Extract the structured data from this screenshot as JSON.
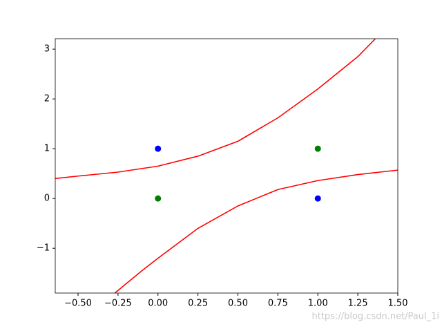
{
  "chart_data": {
    "type": "line",
    "xlim": [
      -0.6425,
      1.5
    ],
    "ylim": [
      -1.9,
      3.21
    ],
    "xticks": [
      {
        "value": -0.5,
        "label": "−0.50"
      },
      {
        "value": -0.25,
        "label": "−0.25"
      },
      {
        "value": 0,
        "label": "0.00"
      },
      {
        "value": 0.25,
        "label": "0.25"
      },
      {
        "value": 0.5,
        "label": "0.50"
      },
      {
        "value": 0.75,
        "label": "0.75"
      },
      {
        "value": 1,
        "label": "1.00"
      },
      {
        "value": 1.25,
        "label": "1.25"
      },
      {
        "value": 1.5,
        "label": "1.50"
      }
    ],
    "yticks": [
      {
        "value": -1,
        "label": "−1"
      },
      0,
      1,
      2,
      3
    ],
    "lines": [
      {
        "color": "#ff0000",
        "x": [
          -0.6425,
          -0.5,
          -0.25,
          0,
          0.25,
          0.5,
          0.75,
          1.0,
          1.25,
          1.36
        ],
        "values": [
          0.4,
          0.45,
          0.53,
          0.65,
          0.85,
          1.15,
          1.62,
          2.2,
          2.85,
          3.21
        ]
      },
      {
        "color": "#ff0000",
        "x": [
          -0.27,
          -0.1,
          0,
          0.25,
          0.5,
          0.75,
          1.0,
          1.25,
          1.5
        ],
        "values": [
          -1.9,
          -1.45,
          -1.2,
          -0.6,
          -0.15,
          0.18,
          0.36,
          0.48,
          0.57
        ]
      }
    ],
    "points": [
      {
        "color": "#0000ff",
        "x": [
          0,
          1
        ],
        "values": [
          1,
          0
        ]
      },
      {
        "color": "#008000",
        "x": [
          0,
          1
        ],
        "values": [
          0,
          1
        ]
      }
    ],
    "watermark": "https://blog.csdn.net/Paul_1i"
  }
}
